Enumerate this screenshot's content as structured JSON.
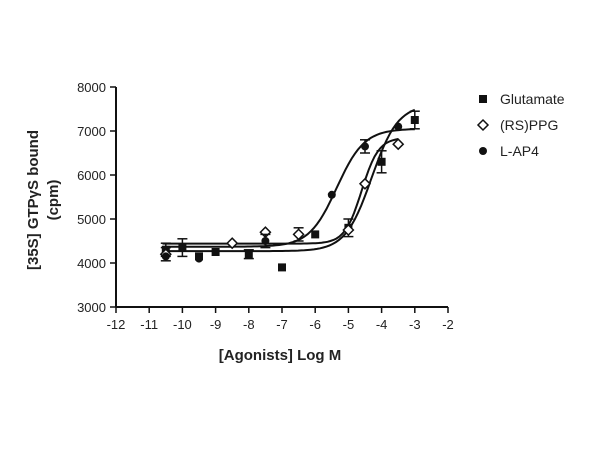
{
  "chart_data": {
    "type": "scatter",
    "xlabel": "[Agonists] Log M",
    "ylabel_line1": "[35S] GTPγS bound",
    "ylabel_line2": "(cpm)",
    "xlim": [
      -12,
      -2
    ],
    "ylim": [
      3000,
      8000
    ],
    "xticks": [
      -12,
      -11,
      -10,
      -9,
      -8,
      -7,
      -6,
      -5,
      -4,
      -3,
      -2
    ],
    "yticks": [
      3000,
      4000,
      5000,
      6000,
      7000,
      8000
    ],
    "legend_position": "right",
    "grid": false,
    "series": [
      {
        "name": "Glutamate",
        "marker": "square",
        "points": [
          {
            "x": -10.5,
            "y": 4300,
            "err": 150
          },
          {
            "x": -10.0,
            "y": 4350,
            "err": 200
          },
          {
            "x": -9.5,
            "y": 4150,
            "err": 0
          },
          {
            "x": -9.0,
            "y": 4250,
            "err": 0
          },
          {
            "x": -8.0,
            "y": 4200,
            "err": 100
          },
          {
            "x": -7.0,
            "y": 3900,
            "err": 0
          },
          {
            "x": -6.0,
            "y": 4650,
            "err": 0
          },
          {
            "x": -5.0,
            "y": 4800,
            "err": 200
          },
          {
            "x": -4.0,
            "y": 6300,
            "err": 250
          },
          {
            "x": -3.0,
            "y": 7250,
            "err": 200
          }
        ],
        "curve": {
          "bottom": 4270,
          "top": 7600,
          "logEC50": -4.3,
          "hill": 1.1,
          "from": -10.6,
          "to": -3.0
        }
      },
      {
        "name": "(RS)PPG",
        "marker": "diamond-open",
        "points": [
          {
            "x": -10.5,
            "y": 4200,
            "err": 150
          },
          {
            "x": -8.5,
            "y": 4450,
            "err": 0
          },
          {
            "x": -7.5,
            "y": 4700,
            "err": 0
          },
          {
            "x": -6.5,
            "y": 4650,
            "err": 150
          },
          {
            "x": -5.0,
            "y": 4750,
            "err": 0
          },
          {
            "x": -4.5,
            "y": 5800,
            "err": 0
          },
          {
            "x": -3.5,
            "y": 6700,
            "err": 0
          }
        ],
        "curve": {
          "bottom": 4440,
          "top": 6850,
          "logEC50": -4.6,
          "hill": 1.7,
          "from": -10.6,
          "to": -3.5
        }
      },
      {
        "name": "L-AP4",
        "marker": "circle",
        "points": [
          {
            "x": -10.5,
            "y": 4150,
            "err": 0
          },
          {
            "x": -9.5,
            "y": 4100,
            "err": 0
          },
          {
            "x": -7.5,
            "y": 4500,
            "err": 150
          },
          {
            "x": -5.5,
            "y": 5550,
            "err": 0
          },
          {
            "x": -4.5,
            "y": 6650,
            "err": 150
          },
          {
            "x": -3.5,
            "y": 7100,
            "err": 0
          }
        ],
        "curve": {
          "bottom": 4370,
          "top": 7050,
          "logEC50": -5.35,
          "hill": 1.05,
          "from": -10.6,
          "to": -3.0
        }
      }
    ]
  }
}
